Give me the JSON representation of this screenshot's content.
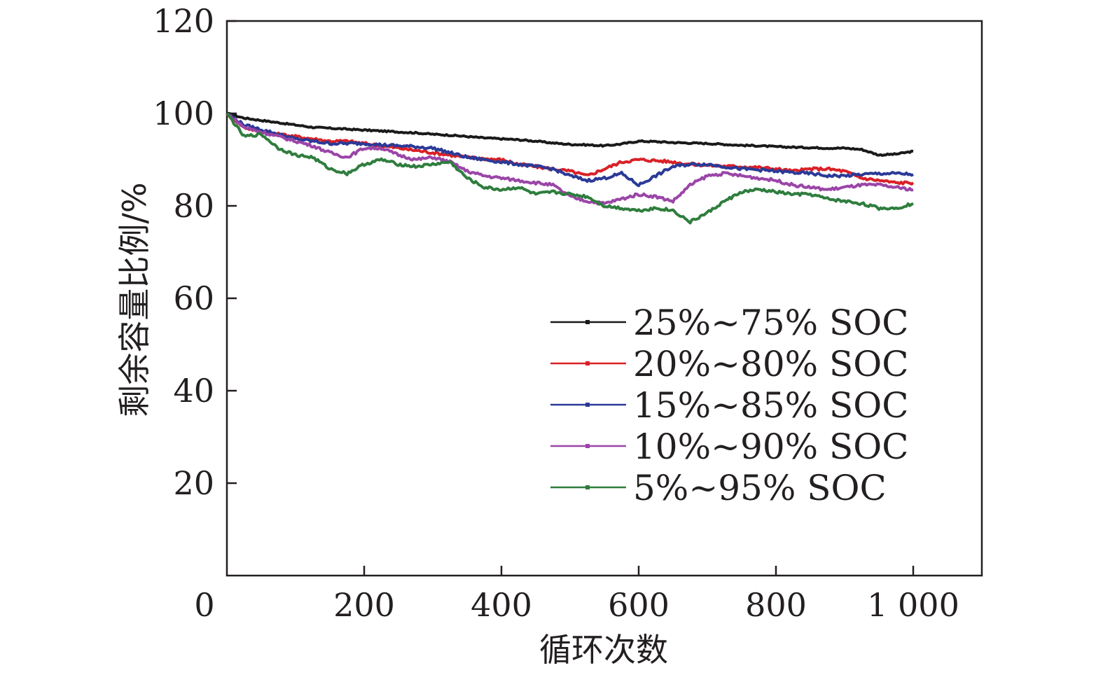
{
  "chart_data": {
    "type": "line",
    "xlabel": "循环次数",
    "ylabel": "剩余容量比例/%",
    "xlim": [
      0,
      1100
    ],
    "ylim": [
      0,
      120
    ],
    "xticks": [
      {
        "value": 0,
        "label": "0"
      },
      {
        "value": 200,
        "label": "200"
      },
      {
        "value": 400,
        "label": "400"
      },
      {
        "value": 600,
        "label": "600"
      },
      {
        "value": 800,
        "label": "800"
      },
      {
        "value": 1000,
        "label": "1 000"
      }
    ],
    "yticks": [
      {
        "value": 20,
        "label": "20"
      },
      {
        "value": 40,
        "label": "40"
      },
      {
        "value": 60,
        "label": "60"
      },
      {
        "value": 80,
        "label": "80"
      },
      {
        "value": 100,
        "label": "100"
      },
      {
        "value": 120,
        "label": "120"
      }
    ],
    "grid": false,
    "legend_position": "bottom-right",
    "series": [
      {
        "name": "25%~75% SOC",
        "color": "#1a1a1a",
        "x": [
          0,
          25,
          50,
          75,
          100,
          125,
          150,
          175,
          200,
          225,
          250,
          275,
          300,
          325,
          350,
          375,
          400,
          425,
          450,
          475,
          500,
          525,
          550,
          575,
          600,
          625,
          650,
          675,
          700,
          725,
          750,
          775,
          800,
          825,
          850,
          875,
          900,
          925,
          950,
          975,
          1000
        ],
        "y": [
          100,
          99.0,
          98.5,
          98.0,
          97.5,
          97.0,
          96.8,
          96.6,
          96.4,
          96.2,
          96.0,
          95.8,
          95.5,
          95.3,
          95.0,
          94.7,
          94.5,
          94.3,
          94.0,
          93.6,
          93.3,
          93.2,
          93.0,
          93.4,
          94.0,
          93.9,
          93.7,
          93.6,
          93.5,
          93.3,
          93.1,
          93.0,
          92.8,
          92.7,
          92.6,
          92.5,
          92.5,
          92.2,
          91.0,
          91.2,
          91.8
        ]
      },
      {
        "name": "20%~80% SOC",
        "color": "#d92128",
        "x": [
          0,
          25,
          50,
          75,
          100,
          125,
          150,
          175,
          200,
          225,
          250,
          275,
          300,
          325,
          350,
          375,
          400,
          425,
          450,
          475,
          500,
          525,
          550,
          575,
          600,
          625,
          650,
          675,
          700,
          725,
          750,
          775,
          800,
          825,
          850,
          875,
          900,
          925,
          950,
          975,
          1000
        ],
        "y": [
          100,
          97.0,
          96.0,
          95.5,
          95.0,
          94.5,
          94.0,
          94.0,
          93.5,
          93.0,
          92.5,
          92.0,
          91.5,
          91.0,
          90.5,
          90.2,
          90.0,
          89.0,
          88.5,
          88.0,
          87.5,
          86.5,
          88.0,
          89.5,
          90.0,
          89.8,
          89.5,
          89.0,
          88.8,
          88.6,
          88.5,
          88.3,
          88.0,
          87.5,
          88.0,
          88.0,
          87.5,
          86.0,
          85.5,
          85.0,
          85.0
        ]
      },
      {
        "name": "15%~85% SOC",
        "color": "#2b3a97",
        "x": [
          0,
          25,
          50,
          75,
          100,
          125,
          150,
          175,
          200,
          225,
          250,
          275,
          300,
          325,
          350,
          375,
          400,
          425,
          450,
          475,
          500,
          525,
          550,
          575,
          600,
          625,
          650,
          675,
          700,
          725,
          750,
          775,
          800,
          825,
          850,
          875,
          900,
          925,
          950,
          975,
          1000
        ],
        "y": [
          100,
          97.5,
          96.5,
          95.5,
          94.5,
          94.0,
          93.5,
          93.5,
          93.5,
          93.2,
          93.0,
          92.8,
          92.5,
          91.5,
          90.5,
          90.0,
          89.5,
          89.0,
          88.5,
          88.0,
          86.5,
          85.5,
          86.0,
          87.0,
          84.5,
          86.5,
          88.5,
          89.0,
          89.0,
          88.5,
          88.0,
          87.8,
          87.5,
          87.2,
          87.0,
          86.5,
          86.5,
          86.8,
          87.0,
          87.0,
          86.8
        ]
      },
      {
        "name": "10%~90% SOC",
        "color": "#9b45a8",
        "x": [
          0,
          25,
          50,
          75,
          100,
          125,
          150,
          175,
          200,
          225,
          250,
          275,
          300,
          325,
          350,
          375,
          400,
          425,
          450,
          475,
          500,
          525,
          550,
          575,
          600,
          625,
          650,
          675,
          700,
          725,
          750,
          775,
          800,
          825,
          850,
          875,
          900,
          925,
          950,
          975,
          1000
        ],
        "y": [
          100,
          97.0,
          96.0,
          95.0,
          94.0,
          93.0,
          91.5,
          90.5,
          92.5,
          92.5,
          91.0,
          90.0,
          90.5,
          89.5,
          87.5,
          86.5,
          86.0,
          85.5,
          85.0,
          84.5,
          82.0,
          81.0,
          80.5,
          81.5,
          82.5,
          82.0,
          81.0,
          84.5,
          86.5,
          87.0,
          86.5,
          86.0,
          85.5,
          84.5,
          84.0,
          83.5,
          84.0,
          84.5,
          84.5,
          84.0,
          83.5
        ]
      },
      {
        "name": "5%~95% SOC",
        "color": "#2f7d3e",
        "x": [
          0,
          25,
          50,
          75,
          100,
          125,
          150,
          175,
          200,
          225,
          250,
          275,
          300,
          325,
          350,
          375,
          400,
          425,
          450,
          475,
          500,
          525,
          550,
          575,
          600,
          625,
          650,
          675,
          700,
          725,
          750,
          775,
          800,
          825,
          850,
          875,
          900,
          925,
          950,
          975,
          1000
        ],
        "y": [
          100,
          95.0,
          95.5,
          92.5,
          91.0,
          90.5,
          88.0,
          87.0,
          89.0,
          90.0,
          89.0,
          88.5,
          89.0,
          89.5,
          86.0,
          84.0,
          83.5,
          84.0,
          82.5,
          83.0,
          82.5,
          82.0,
          80.0,
          79.5,
          79.0,
          79.5,
          79.0,
          76.5,
          78.5,
          81.0,
          83.0,
          83.5,
          83.0,
          82.5,
          82.5,
          81.5,
          81.0,
          80.5,
          79.5,
          79.5,
          80.5
        ]
      }
    ]
  }
}
